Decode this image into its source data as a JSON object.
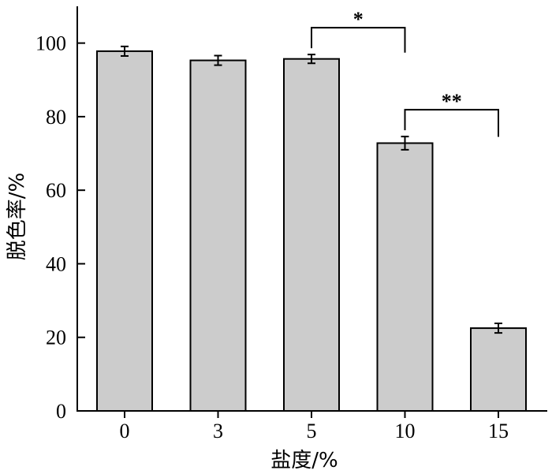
{
  "chart_data": {
    "type": "bar",
    "categories": [
      "0",
      "3",
      "5",
      "10",
      "15"
    ],
    "values": [
      97.8,
      95.3,
      95.7,
      72.8,
      22.5
    ],
    "errors": [
      1.3,
      1.3,
      1.2,
      1.8,
      1.3
    ],
    "xlabel": "盐度/%",
    "ylabel": "脱色率/%",
    "ylim": [
      0,
      110
    ],
    "yticks": [
      0,
      20,
      40,
      60,
      80,
      100
    ],
    "bar_color": "#cccccc",
    "grid": false,
    "significance": [
      {
        "from": "5",
        "to": "10",
        "label": "*"
      },
      {
        "from": "10",
        "to": "15",
        "label": "**"
      }
    ]
  }
}
